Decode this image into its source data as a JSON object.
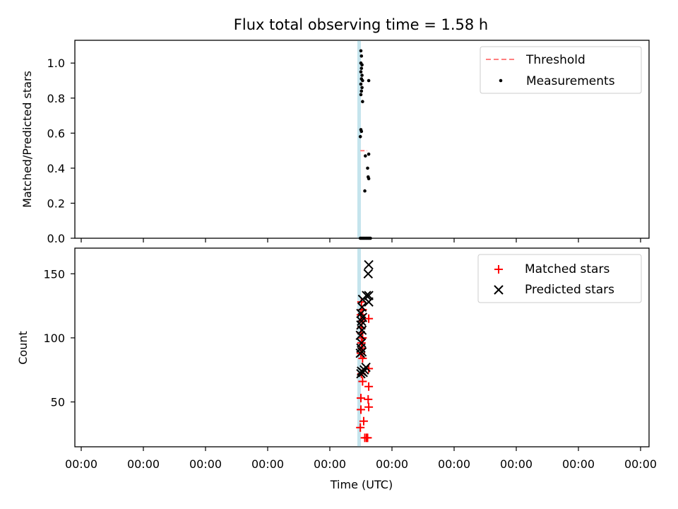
{
  "title": "Flux total observing time = 1.58 h",
  "colors": {
    "threshold": "#ff7f7f",
    "measurements": "#000000",
    "matched": "#ff0000",
    "predicted": "#000000",
    "band": "#add8e6"
  },
  "chart_data": [
    {
      "type": "scatter",
      "ylabel": "Matched/Predicted stars",
      "ylim": [
        0,
        1.13
      ],
      "yticks": [
        "0.0",
        "0.2",
        "0.4",
        "0.6",
        "0.8",
        "1.0"
      ],
      "yticks_values": [
        0.0,
        0.2,
        0.4,
        0.6,
        0.8,
        1.0
      ],
      "xtick_labels_visible": false,
      "legend": [
        "Threshold",
        "Measurements"
      ],
      "legend_position": "top-right",
      "series": [
        {
          "name": "Measurements",
          "marker": "dot",
          "points": [
            [
              0.5,
              1.07
            ],
            [
              0.501,
              1.04
            ],
            [
              0.5,
              1.0
            ],
            [
              0.502,
              0.99
            ],
            [
              0.501,
              0.97
            ],
            [
              0.5,
              0.95
            ],
            [
              0.502,
              0.93
            ],
            [
              0.501,
              0.91
            ],
            [
              0.503,
              0.9
            ],
            [
              0.5,
              0.88
            ],
            [
              0.502,
              0.86
            ],
            [
              0.501,
              0.84
            ],
            [
              0.5,
              0.82
            ],
            [
              0.503,
              0.78
            ],
            [
              0.514,
              0.9
            ],
            [
              0.5,
              0.62
            ],
            [
              0.501,
              0.61
            ],
            [
              0.499,
              0.58
            ],
            [
              0.508,
              0.47
            ],
            [
              0.514,
              0.48
            ],
            [
              0.512,
              0.4
            ],
            [
              0.513,
              0.35
            ],
            [
              0.514,
              0.34
            ],
            [
              0.507,
              0.27
            ],
            [
              0.499,
              0.0
            ],
            [
              0.501,
              0.0
            ],
            [
              0.503,
              0.0
            ],
            [
              0.505,
              0.0
            ],
            [
              0.507,
              0.0
            ],
            [
              0.509,
              0.0
            ],
            [
              0.511,
              0.0
            ],
            [
              0.513,
              0.0
            ],
            [
              0.515,
              0.0
            ],
            [
              0.517,
              0.0
            ]
          ]
        },
        {
          "name": "Threshold",
          "style": "dashed",
          "points": [
            [
              0.499,
              0.5
            ],
            [
              0.511,
              0.5
            ]
          ]
        }
      ]
    },
    {
      "type": "scatter",
      "xlabel": "Time (UTC)",
      "ylabel": "Count",
      "ylim": [
        15,
        170
      ],
      "yticks": [
        "50",
        "100",
        "150"
      ],
      "yticks_values": [
        50,
        100,
        150
      ],
      "xticks": [
        "00:00",
        "00:00",
        "00:00",
        "00:00",
        "00:00",
        "00:00",
        "00:00",
        "00:00",
        "00:00",
        "00:00"
      ],
      "legend": [
        "Matched stars",
        "Predicted stars"
      ],
      "legend_position": "top-right",
      "series": [
        {
          "name": "Matched stars",
          "marker": "plus",
          "points": [
            [
              0.501,
              128
            ],
            [
              0.503,
              122
            ],
            [
              0.5,
              118
            ],
            [
              0.502,
              113
            ],
            [
              0.514,
              115
            ],
            [
              0.501,
              108
            ],
            [
              0.5,
              104
            ],
            [
              0.503,
              100
            ],
            [
              0.501,
              96
            ],
            [
              0.502,
              92
            ],
            [
              0.5,
              88
            ],
            [
              0.503,
              84
            ],
            [
              0.514,
              76
            ],
            [
              0.501,
              72
            ],
            [
              0.503,
              66
            ],
            [
              0.514,
              62
            ],
            [
              0.5,
              53
            ],
            [
              0.513,
              52
            ],
            [
              0.514,
              46
            ],
            [
              0.5,
              44
            ],
            [
              0.505,
              35
            ],
            [
              0.499,
              30
            ],
            [
              0.507,
              22
            ],
            [
              0.51,
              22
            ],
            [
              0.512,
              22
            ]
          ]
        },
        {
          "name": "Predicted stars",
          "marker": "x",
          "points": [
            [
              0.514,
              157
            ],
            [
              0.513,
              150
            ],
            [
              0.51,
              133
            ],
            [
              0.514,
              133
            ],
            [
              0.503,
              130
            ],
            [
              0.514,
              128
            ],
            [
              0.502,
              124
            ],
            [
              0.5,
              119
            ],
            [
              0.503,
              116
            ],
            [
              0.501,
              113
            ],
            [
              0.5,
              110
            ],
            [
              0.502,
              106
            ],
            [
              0.499,
              102
            ],
            [
              0.501,
              96
            ],
            [
              0.5,
              92
            ],
            [
              0.502,
              89
            ],
            [
              0.499,
              88
            ],
            [
              0.509,
              77
            ],
            [
              0.506,
              75
            ],
            [
              0.501,
              74
            ],
            [
              0.504,
              73
            ],
            [
              0.5,
              72
            ]
          ]
        }
      ]
    }
  ]
}
